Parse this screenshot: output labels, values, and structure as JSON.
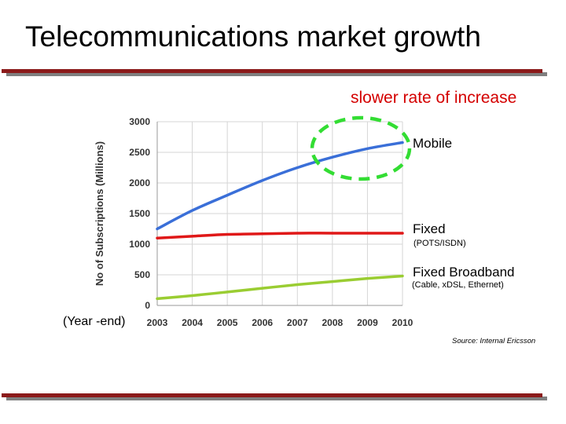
{
  "slide": {
    "title": "Telecommunications market growth",
    "annotation": "slower rate of increase",
    "x_unit_label": "(Year -end)",
    "source": "Source: Internal Ericsson"
  },
  "colors": {
    "mobile": "#3a6fd8",
    "fixed": "#e01818",
    "broadband": "#9acd32",
    "highlight": "#33dd33",
    "annotation": "#d40000",
    "rule": "#8b1a1a"
  },
  "chart_data": {
    "type": "line",
    "title": "",
    "xlabel": "",
    "ylabel": "No of Subscriptions (Millions)",
    "x": [
      2003,
      2004,
      2005,
      2006,
      2007,
      2008,
      2009,
      2010
    ],
    "xticks": [
      "2003",
      "2004",
      "2005",
      "2006",
      "2007",
      "2008",
      "2009",
      "2010"
    ],
    "yticks": [
      "0",
      "500",
      "1000",
      "1500",
      "2000",
      "2500",
      "3000"
    ],
    "ylim": [
      0,
      3000
    ],
    "grid": true,
    "series": [
      {
        "name": "Mobile",
        "subtitle": "",
        "color": "#3a6fd8",
        "values": [
          1250,
          1550,
          1800,
          2040,
          2250,
          2420,
          2560,
          2660
        ]
      },
      {
        "name": "Fixed",
        "subtitle": "(POTS/ISDN)",
        "color": "#e01818",
        "values": [
          1100,
          1130,
          1160,
          1170,
          1180,
          1180,
          1180,
          1180
        ]
      },
      {
        "name": "Fixed Broadband",
        "subtitle": "(Cable, xDSL, Ethernet)",
        "color": "#9acd32",
        "values": [
          110,
          160,
          220,
          280,
          340,
          390,
          440,
          480
        ]
      }
    ]
  }
}
